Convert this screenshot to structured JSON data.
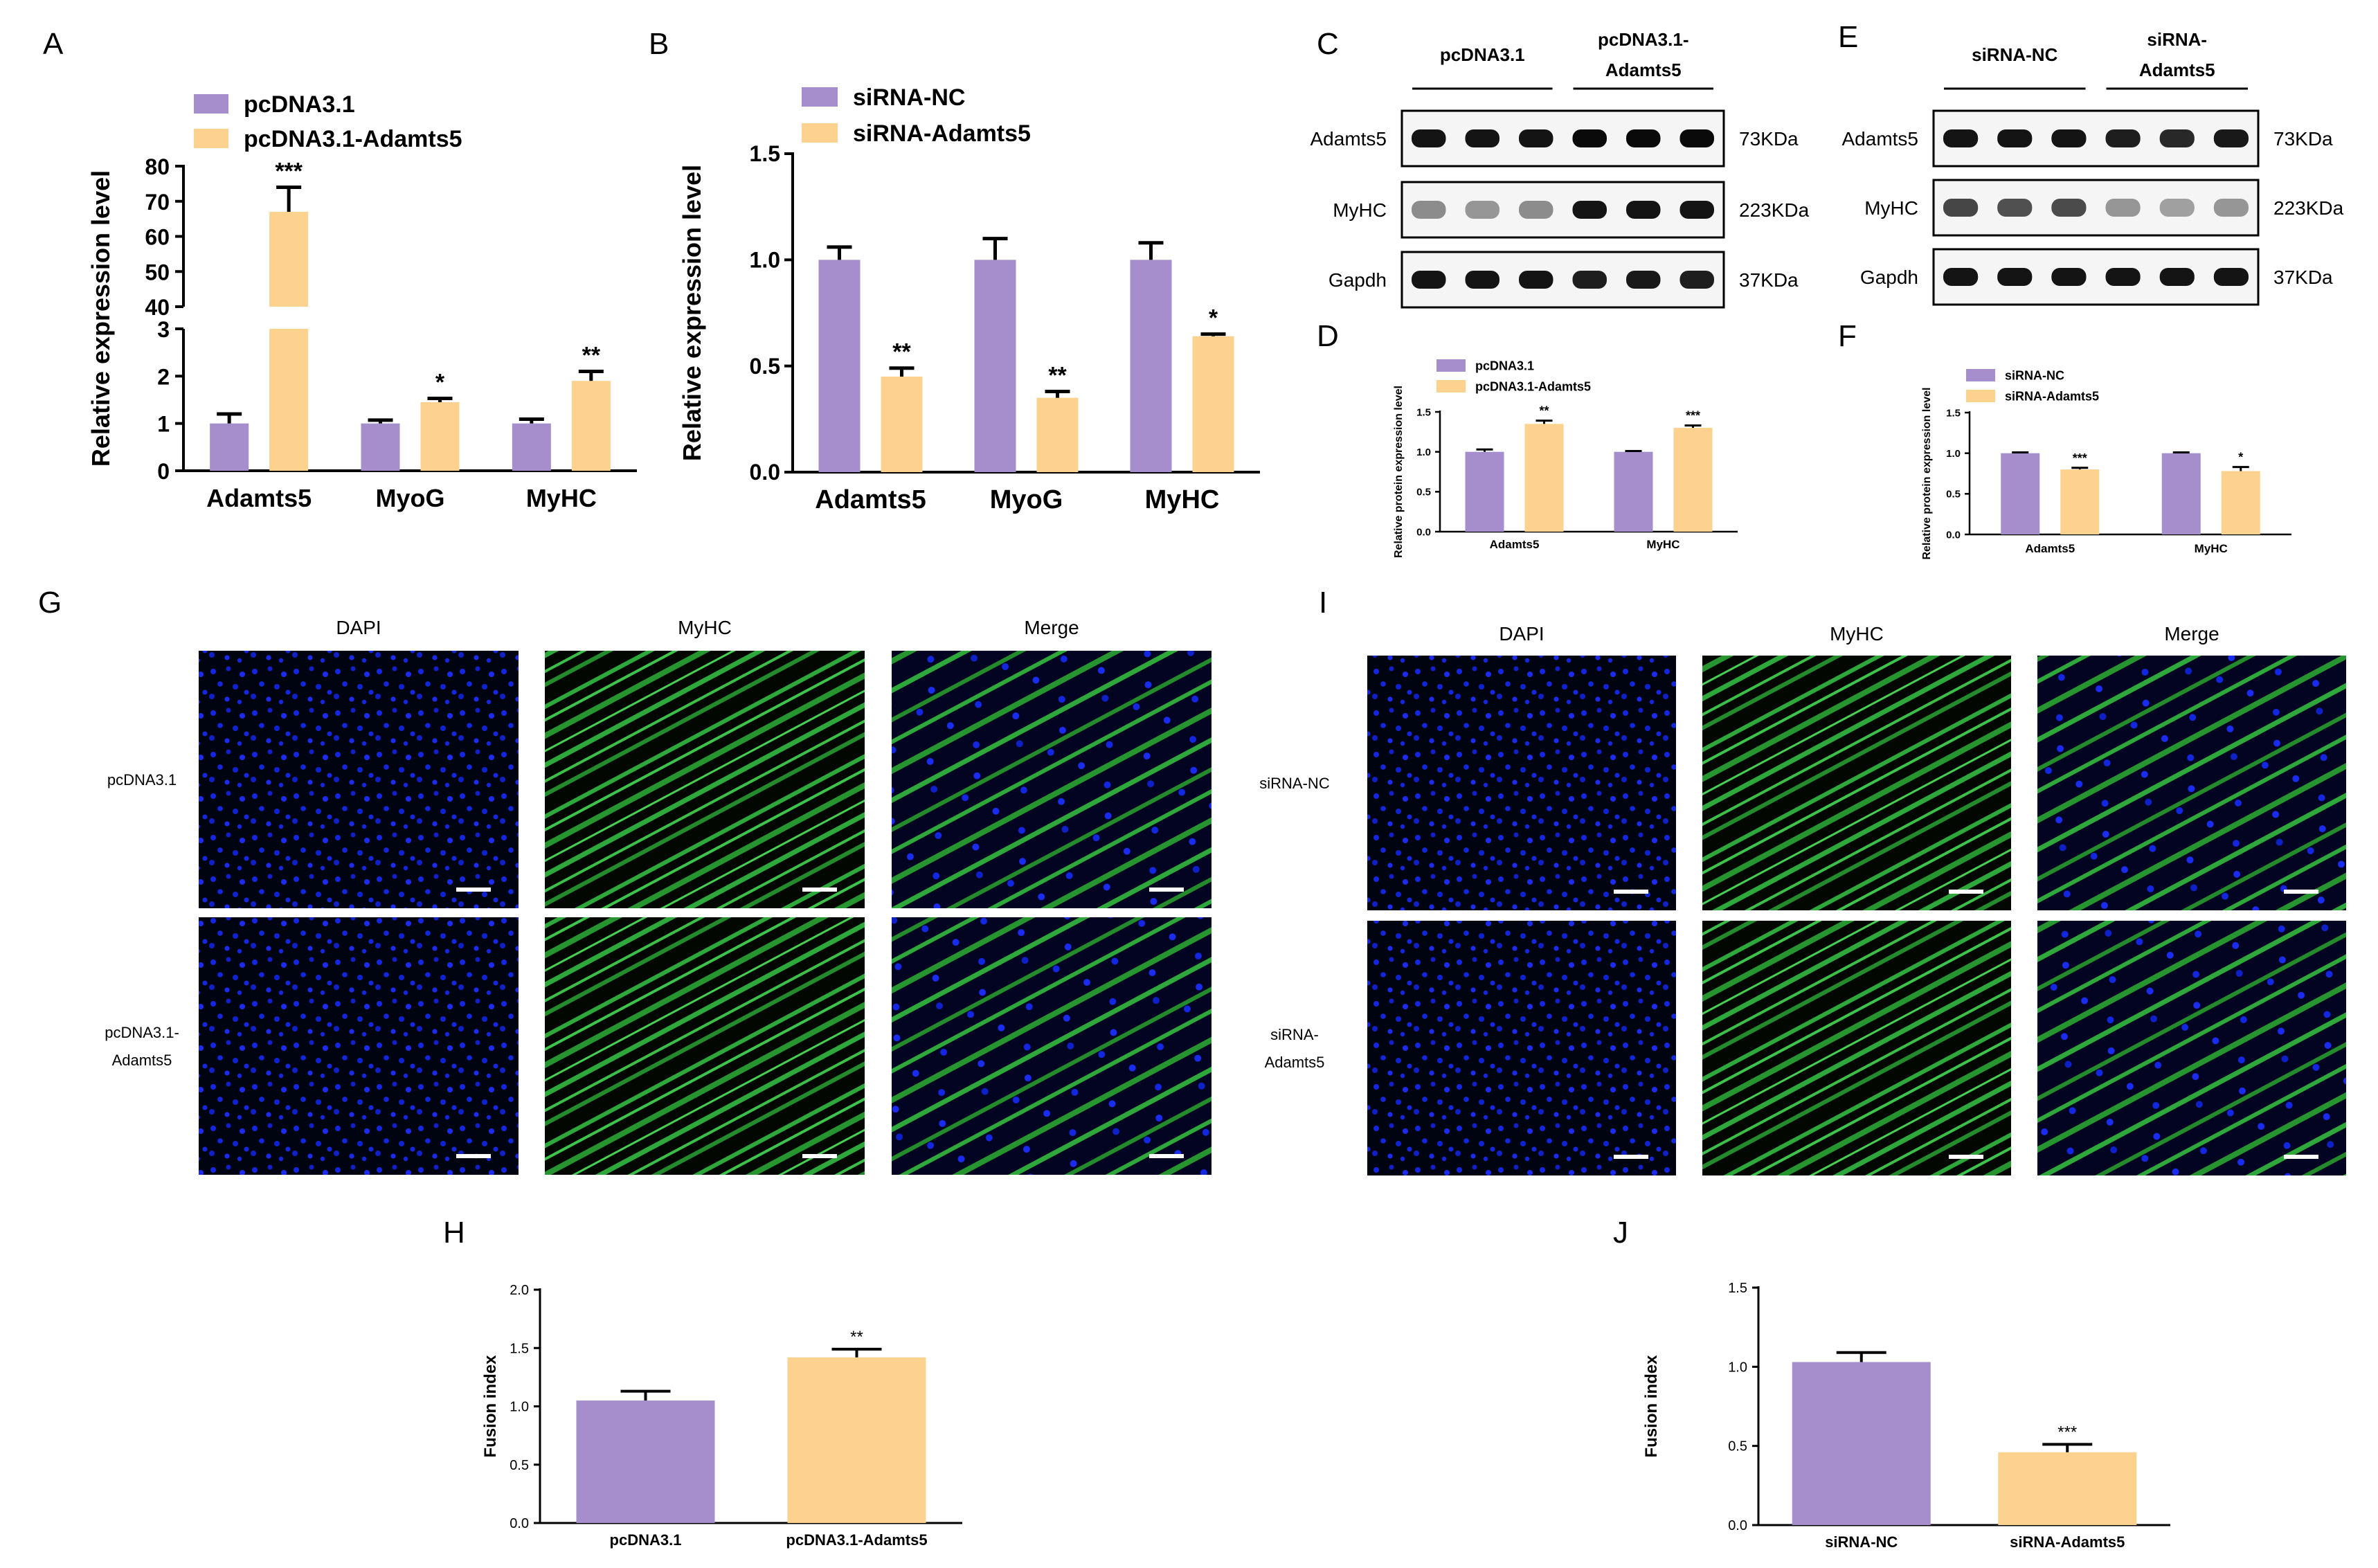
{
  "colors": {
    "control": "#a58ecb",
    "treatment": "#fdd18e",
    "dapi": "#0b1ec8",
    "myhc": "#2fc83a",
    "axis": "#000000"
  },
  "panel_letters": [
    "A",
    "B",
    "C",
    "D",
    "E",
    "F",
    "G",
    "H",
    "I",
    "J"
  ],
  "chart_data": [
    {
      "id": "A",
      "type": "bar",
      "categories": [
        "Adamts5",
        "MyoG",
        "MyHC"
      ],
      "series": [
        {
          "name": "pcDNA3.1",
          "values": [
            1.0,
            1.0,
            1.0
          ],
          "errors": [
            0.2,
            0.07,
            0.09
          ]
        },
        {
          "name": "pcDNA3.1-Adamts5",
          "values": [
            67,
            1.45,
            1.9
          ],
          "errors": [
            7,
            0.08,
            0.2
          ]
        }
      ],
      "significance": [
        "***",
        "*",
        "**"
      ],
      "ylabel": "Relative expression level",
      "ylim": [
        0,
        80
      ],
      "y_axis_break": [
        3,
        40
      ],
      "lower_ticks": [
        "0",
        "1",
        "2",
        "3"
      ],
      "upper_ticks": [
        "40",
        "50",
        "60",
        "70",
        "80"
      ],
      "legend": "top-left"
    },
    {
      "id": "B",
      "type": "bar",
      "categories": [
        "Adamts5",
        "MyoG",
        "MyHC"
      ],
      "series": [
        {
          "name": "siRNA-NC",
          "values": [
            1.0,
            1.0,
            1.0
          ],
          "errors": [
            0.06,
            0.1,
            0.08
          ]
        },
        {
          "name": "siRNA-Adamts5",
          "values": [
            0.45,
            0.35,
            0.64
          ],
          "errors": [
            0.04,
            0.03,
            0.01
          ]
        }
      ],
      "significance": [
        "**",
        "**",
        "*"
      ],
      "ylabel": "Relative expression level",
      "ylim": [
        0,
        1.5
      ],
      "yticks": [
        "0.0",
        "0.5",
        "1.0",
        "1.5"
      ],
      "legend": "top-left"
    },
    {
      "id": "D",
      "type": "bar",
      "categories": [
        "Adamts5",
        "MyHC"
      ],
      "series": [
        {
          "name": "pcDNA3.1",
          "values": [
            1.0,
            1.0
          ],
          "errors": [
            0.03,
            0.01
          ]
        },
        {
          "name": "pcDNA3.1-Adamts5",
          "values": [
            1.35,
            1.3
          ],
          "errors": [
            0.04,
            0.03
          ]
        }
      ],
      "significance": [
        "**",
        "***"
      ],
      "ylabel": "Relative protein expression level",
      "ylim": [
        0,
        1.5
      ],
      "yticks": [
        "0.0",
        "0.5",
        "1.0",
        "1.5"
      ],
      "legend": "top-left"
    },
    {
      "id": "F",
      "type": "bar",
      "categories": [
        "Adamts5",
        "MyHC"
      ],
      "series": [
        {
          "name": "siRNA-NC",
          "values": [
            1.0,
            1.0
          ],
          "errors": [
            0.01,
            0.01
          ]
        },
        {
          "name": "siRNA-Adamts5",
          "values": [
            0.8,
            0.78
          ],
          "errors": [
            0.02,
            0.05
          ]
        }
      ],
      "significance": [
        "***",
        "*"
      ],
      "ylabel": "Relative protein expression level",
      "ylim": [
        0,
        1.5
      ],
      "yticks": [
        "0.0",
        "0.5",
        "1.0",
        "1.5"
      ],
      "legend": "top-left"
    },
    {
      "id": "H",
      "type": "bar",
      "categories": [
        "pcDNA3.1",
        "pcDNA3.1-Adamts5"
      ],
      "values": [
        1.05,
        1.42
      ],
      "errors": [
        0.08,
        0.07
      ],
      "significance": [
        "",
        "**"
      ],
      "ylabel": "Fusion index",
      "ylim": [
        0,
        2.0
      ],
      "yticks": [
        "0.0",
        "0.5",
        "1.0",
        "1.5",
        "2.0"
      ]
    },
    {
      "id": "J",
      "type": "bar",
      "categories": [
        "siRNA-NC",
        "siRNA-Adamts5"
      ],
      "values": [
        1.03,
        0.46
      ],
      "errors": [
        0.06,
        0.05
      ],
      "significance": [
        "",
        "***"
      ],
      "ylabel": "Fusion index",
      "ylim": [
        0,
        1.5
      ],
      "yticks": [
        "0.0",
        "0.5",
        "1.0",
        "1.5"
      ]
    }
  ],
  "western_C": {
    "groups": [
      "pcDNA3.1",
      "pcDNA3.1-\nAdamts5"
    ],
    "rows": [
      {
        "protein": "Adamts5",
        "size": "73KDa"
      },
      {
        "protein": "MyHC",
        "size": "223KDa"
      },
      {
        "protein": "Gapdh",
        "size": "37KDa"
      }
    ]
  },
  "western_E": {
    "groups": [
      "siRNA-NC",
      "siRNA-\nAdamts5"
    ],
    "rows": [
      {
        "protein": "Adamts5",
        "size": "73KDa"
      },
      {
        "protein": "MyHC",
        "size": "223KDa"
      },
      {
        "protein": "Gapdh",
        "size": "37KDa"
      }
    ]
  },
  "micro_G": {
    "columns": [
      "DAPI",
      "MyHC",
      "Merge"
    ],
    "rows": [
      "pcDNA3.1",
      "pcDNA3.1-\nAdamts5"
    ]
  },
  "micro_I": {
    "columns": [
      "DAPI",
      "MyHC",
      "Merge"
    ],
    "rows": [
      "siRNA-NC",
      "siRNA-\nAdamts5"
    ]
  }
}
